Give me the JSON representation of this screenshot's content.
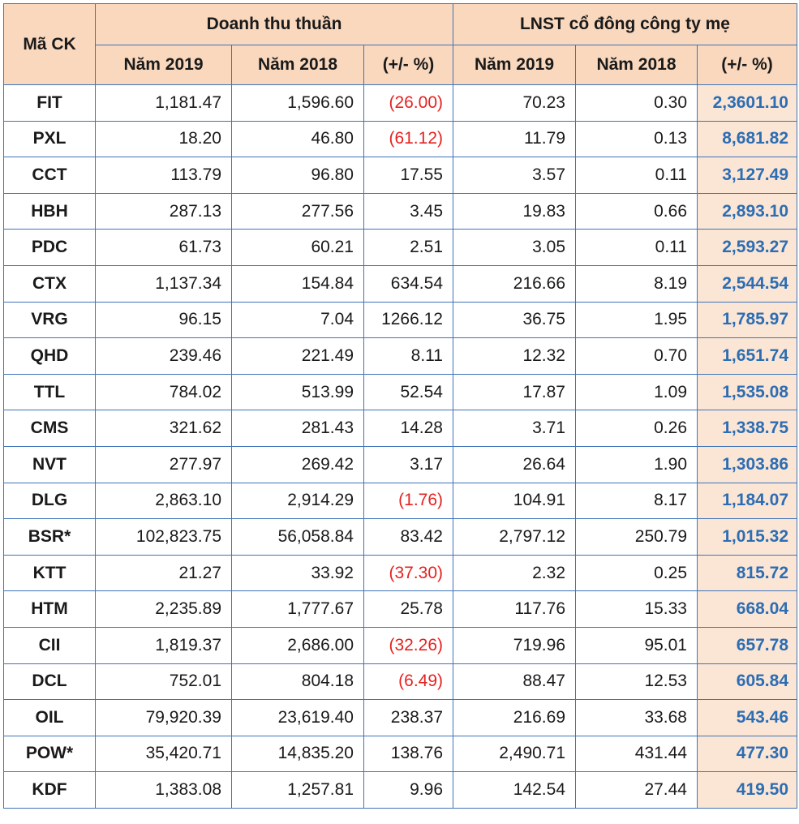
{
  "header": {
    "code_label": "Mã CK",
    "group1_label": "Doanh thu thuần",
    "group2_label": "LNST cổ đông công ty mẹ",
    "year2019": "Năm 2019",
    "year2018": "Năm 2018",
    "change": "(+/- %)"
  },
  "colors": {
    "header_bg": "#f9d8be",
    "border": "#3f74b8",
    "negative_text": "#e52320",
    "highlight_bg": "#fbe6d6",
    "highlight_text": "#2c6db3"
  },
  "rows": [
    {
      "code": "FIT",
      "rev2019": "1,181.47",
      "rev2018": "1,596.60",
      "rev_chg": "(26.00)",
      "rev_neg": true,
      "np2019": "70.23",
      "np2018": "0.30",
      "np_chg": "2,3601.10"
    },
    {
      "code": "PXL",
      "rev2019": "18.20",
      "rev2018": "46.80",
      "rev_chg": "(61.12)",
      "rev_neg": true,
      "np2019": "11.79",
      "np2018": "0.13",
      "np_chg": "8,681.82"
    },
    {
      "code": "CCT",
      "rev2019": "113.79",
      "rev2018": "96.80",
      "rev_chg": "17.55",
      "rev_neg": false,
      "np2019": "3.57",
      "np2018": "0.11",
      "np_chg": "3,127.49"
    },
    {
      "code": "HBH",
      "rev2019": "287.13",
      "rev2018": "277.56",
      "rev_chg": "3.45",
      "rev_neg": false,
      "np2019": "19.83",
      "np2018": "0.66",
      "np_chg": "2,893.10"
    },
    {
      "code": "PDC",
      "rev2019": "61.73",
      "rev2018": "60.21",
      "rev_chg": "2.51",
      "rev_neg": false,
      "np2019": "3.05",
      "np2018": "0.11",
      "np_chg": "2,593.27"
    },
    {
      "code": "CTX",
      "rev2019": "1,137.34",
      "rev2018": "154.84",
      "rev_chg": "634.54",
      "rev_neg": false,
      "np2019": "216.66",
      "np2018": "8.19",
      "np_chg": "2,544.54"
    },
    {
      "code": "VRG",
      "rev2019": "96.15",
      "rev2018": "7.04",
      "rev_chg": "1266.12",
      "rev_neg": false,
      "np2019": "36.75",
      "np2018": "1.95",
      "np_chg": "1,785.97"
    },
    {
      "code": "QHD",
      "rev2019": "239.46",
      "rev2018": "221.49",
      "rev_chg": "8.11",
      "rev_neg": false,
      "np2019": "12.32",
      "np2018": "0.70",
      "np_chg": "1,651.74"
    },
    {
      "code": "TTL",
      "rev2019": "784.02",
      "rev2018": "513.99",
      "rev_chg": "52.54",
      "rev_neg": false,
      "np2019": "17.87",
      "np2018": "1.09",
      "np_chg": "1,535.08"
    },
    {
      "code": "CMS",
      "rev2019": "321.62",
      "rev2018": "281.43",
      "rev_chg": "14.28",
      "rev_neg": false,
      "np2019": "3.71",
      "np2018": "0.26",
      "np_chg": "1,338.75"
    },
    {
      "code": "NVT",
      "rev2019": "277.97",
      "rev2018": "269.42",
      "rev_chg": "3.17",
      "rev_neg": false,
      "np2019": "26.64",
      "np2018": "1.90",
      "np_chg": "1,303.86"
    },
    {
      "code": "DLG",
      "rev2019": "2,863.10",
      "rev2018": "2,914.29",
      "rev_chg": "(1.76)",
      "rev_neg": true,
      "np2019": "104.91",
      "np2018": "8.17",
      "np_chg": "1,184.07"
    },
    {
      "code": "BSR*",
      "rev2019": "102,823.75",
      "rev2018": "56,058.84",
      "rev_chg": "83.42",
      "rev_neg": false,
      "np2019": "2,797.12",
      "np2018": "250.79",
      "np_chg": "1,015.32"
    },
    {
      "code": "KTT",
      "rev2019": "21.27",
      "rev2018": "33.92",
      "rev_chg": "(37.30)",
      "rev_neg": true,
      "np2019": "2.32",
      "np2018": "0.25",
      "np_chg": "815.72"
    },
    {
      "code": "HTM",
      "rev2019": "2,235.89",
      "rev2018": "1,777.67",
      "rev_chg": "25.78",
      "rev_neg": false,
      "np2019": "117.76",
      "np2018": "15.33",
      "np_chg": "668.04"
    },
    {
      "code": "CII",
      "rev2019": "1,819.37",
      "rev2018": "2,686.00",
      "rev_chg": "(32.26)",
      "rev_neg": true,
      "np2019": "719.96",
      "np2018": "95.01",
      "np_chg": "657.78"
    },
    {
      "code": "DCL",
      "rev2019": "752.01",
      "rev2018": "804.18",
      "rev_chg": "(6.49)",
      "rev_neg": true,
      "np2019": "88.47",
      "np2018": "12.53",
      "np_chg": "605.84"
    },
    {
      "code": "OIL",
      "rev2019": "79,920.39",
      "rev2018": "23,619.40",
      "rev_chg": "238.37",
      "rev_neg": false,
      "np2019": "216.69",
      "np2018": "33.68",
      "np_chg": "543.46"
    },
    {
      "code": "POW*",
      "rev2019": "35,420.71",
      "rev2018": "14,835.20",
      "rev_chg": "138.76",
      "rev_neg": false,
      "np2019": "2,490.71",
      "np2018": "431.44",
      "np_chg": "477.30"
    },
    {
      "code": "KDF",
      "rev2019": "1,383.08",
      "rev2018": "1,257.81",
      "rev_chg": "9.96",
      "rev_neg": false,
      "np2019": "142.54",
      "np2018": "27.44",
      "np_chg": "419.50"
    }
  ]
}
